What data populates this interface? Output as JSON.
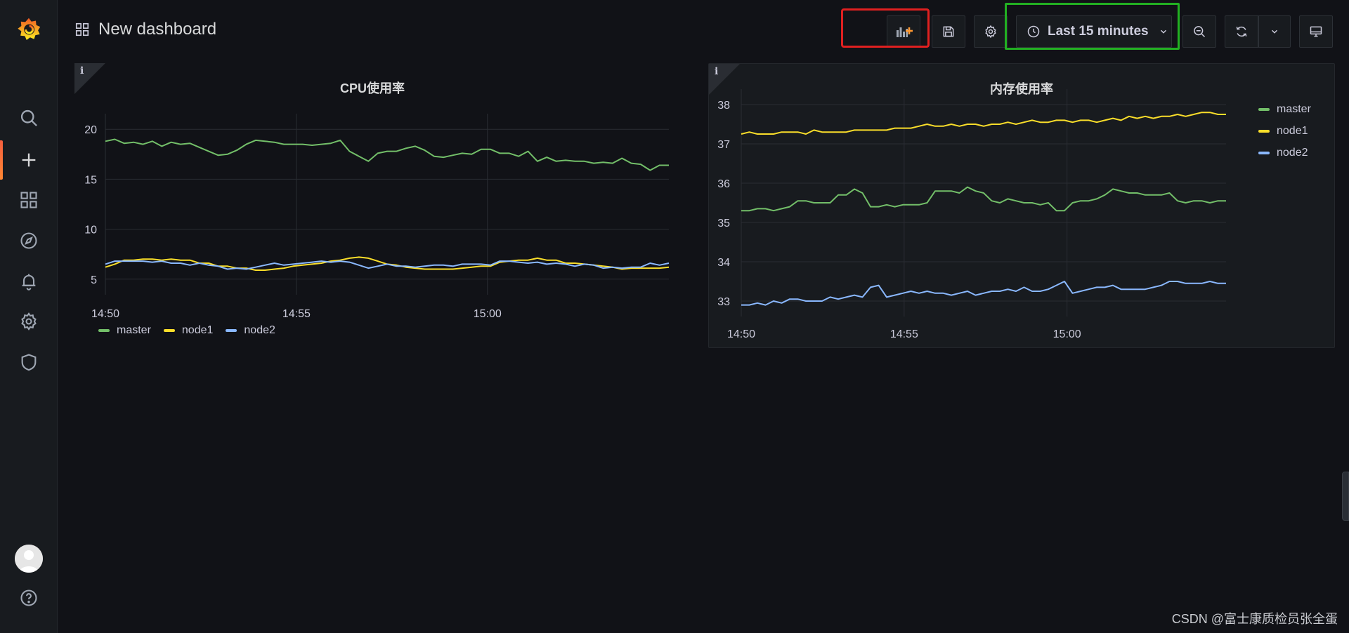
{
  "app": {
    "dashboard_title": "New dashboard"
  },
  "toolbar": {
    "time_range": "Last 15 minutes",
    "icons": [
      "add-panel-icon",
      "save-icon",
      "settings-icon",
      "clock-icon",
      "chevron-down-icon",
      "zoom-out-icon",
      "refresh-icon",
      "chevron-down-icon",
      "tv-icon"
    ]
  },
  "sidebar": {
    "items": [
      "grafana-logo-icon",
      "search-icon",
      "plus-icon",
      "dashboards-icon",
      "explore-icon",
      "alerting-icon",
      "gear-icon",
      "shield-icon",
      "avatar",
      "help-icon"
    ]
  },
  "colors": {
    "master": "#73bf69",
    "node1": "#fade2a",
    "node2": "#8ab8ff",
    "accent": "#ff8833"
  },
  "panels": [
    {
      "title": "CPU使用率",
      "info_label": "i",
      "legend_placement": "bottom",
      "chart_data": {
        "type": "line",
        "x_ticks": [
          "14:50",
          "14:55",
          "15:00"
        ],
        "y_ticks": [
          5,
          10,
          15,
          20
        ],
        "ylim": [
          4,
          21
        ],
        "series": [
          {
            "name": "master",
            "values": [
              18.8,
              19,
              18.6,
              18.7,
              18.5,
              18.8,
              18.3,
              18.7,
              18.5,
              18.6,
              18.2,
              17.8,
              17.4,
              17.5,
              17.9,
              18.5,
              18.9,
              18.8,
              18.7,
              18.5,
              18.5,
              18.5,
              18.4,
              18.5,
              18.6,
              18.9,
              17.8,
              17.3,
              16.8,
              17.6,
              17.8,
              17.8,
              18.1,
              18.3,
              17.9,
              17.3,
              17.2,
              17.4,
              17.6,
              17.5,
              18,
              18,
              17.6,
              17.6,
              17.3,
              17.8,
              16.8,
              17.2,
              16.8,
              16.9,
              16.8,
              16.8,
              16.6,
              16.7,
              16.6,
              17.1,
              16.6,
              16.5,
              15.9,
              16.4,
              16.4
            ]
          },
          {
            "name": "node1",
            "values": [
              6.2,
              6.5,
              6.9,
              6.9,
              7,
              7,
              6.9,
              7,
              6.9,
              6.9,
              6.6,
              6.6,
              6.3,
              6.3,
              6.1,
              6.1,
              5.9,
              5.9,
              6,
              6.1,
              6.3,
              6.4,
              6.5,
              6.6,
              6.8,
              6.9,
              7.1,
              7.2,
              7.1,
              6.8,
              6.5,
              6.4,
              6.2,
              6.1,
              6,
              6,
              6,
              6,
              6.1,
              6.2,
              6.3,
              6.3,
              6.7,
              6.8,
              6.9,
              6.9,
              7.1,
              6.9,
              6.9,
              6.6,
              6.6,
              6.5,
              6.4,
              6.3,
              6.2,
              6,
              6.1,
              6.1,
              6.1,
              6.1,
              6.2
            ]
          },
          {
            "name": "node2",
            "values": [
              6.5,
              6.8,
              6.8,
              6.8,
              6.8,
              6.7,
              6.8,
              6.6,
              6.6,
              6.4,
              6.6,
              6.4,
              6.3,
              6,
              6.1,
              6,
              6.2,
              6.4,
              6.6,
              6.4,
              6.5,
              6.6,
              6.7,
              6.8,
              6.7,
              6.8,
              6.7,
              6.4,
              6.1,
              6.3,
              6.5,
              6.3,
              6.3,
              6.2,
              6.3,
              6.4,
              6.4,
              6.3,
              6.5,
              6.5,
              6.5,
              6.4,
              6.8,
              6.8,
              6.7,
              6.6,
              6.7,
              6.5,
              6.6,
              6.5,
              6.3,
              6.5,
              6.4,
              6.1,
              6.2,
              6.1,
              6.2,
              6.2,
              6.6,
              6.4,
              6.6
            ]
          }
        ]
      }
    },
    {
      "title": "内存使用率",
      "info_label": "i",
      "legend_placement": "right",
      "chart_data": {
        "type": "line",
        "x_ticks": [
          "14:50",
          "14:55",
          "15:00"
        ],
        "y_ticks": [
          33,
          34,
          35,
          36,
          37,
          38
        ],
        "ylim": [
          32.75,
          38.25
        ],
        "series": [
          {
            "name": "master",
            "values": [
              35.3,
              35.3,
              35.35,
              35.35,
              35.3,
              35.35,
              35.4,
              35.55,
              35.55,
              35.5,
              35.5,
              35.5,
              35.7,
              35.7,
              35.85,
              35.75,
              35.4,
              35.4,
              35.45,
              35.4,
              35.45,
              35.45,
              35.45,
              35.5,
              35.8,
              35.8,
              35.8,
              35.75,
              35.9,
              35.8,
              35.75,
              35.55,
              35.5,
              35.6,
              35.55,
              35.5,
              35.5,
              35.45,
              35.5,
              35.3,
              35.3,
              35.5,
              35.55,
              35.55,
              35.6,
              35.7,
              35.85,
              35.8,
              35.75,
              35.75,
              35.7,
              35.7,
              35.7,
              35.75,
              35.55,
              35.5,
              35.55,
              35.55,
              35.5,
              35.55,
              35.55
            ]
          },
          {
            "name": "node1",
            "values": [
              37.25,
              37.3,
              37.25,
              37.25,
              37.25,
              37.3,
              37.3,
              37.3,
              37.25,
              37.35,
              37.3,
              37.3,
              37.3,
              37.3,
              37.35,
              37.35,
              37.35,
              37.35,
              37.35,
              37.4,
              37.4,
              37.4,
              37.45,
              37.5,
              37.45,
              37.45,
              37.5,
              37.45,
              37.5,
              37.5,
              37.45,
              37.5,
              37.5,
              37.55,
              37.5,
              37.55,
              37.6,
              37.55,
              37.55,
              37.6,
              37.6,
              37.55,
              37.6,
              37.6,
              37.55,
              37.6,
              37.65,
              37.6,
              37.7,
              37.65,
              37.7,
              37.65,
              37.7,
              37.7,
              37.75,
              37.7,
              37.75,
              37.8,
              37.8,
              37.75,
              37.75
            ]
          },
          {
            "name": "node2",
            "values": [
              32.9,
              32.9,
              32.95,
              32.9,
              33,
              32.95,
              33.05,
              33.05,
              33,
              33,
              33,
              33.1,
              33.05,
              33.1,
              33.15,
              33.1,
              33.35,
              33.4,
              33.1,
              33.15,
              33.2,
              33.25,
              33.2,
              33.25,
              33.2,
              33.2,
              33.15,
              33.2,
              33.25,
              33.15,
              33.2,
              33.25,
              33.25,
              33.3,
              33.25,
              33.35,
              33.25,
              33.25,
              33.3,
              33.4,
              33.5,
              33.2,
              33.25,
              33.3,
              33.35,
              33.35,
              33.4,
              33.3,
              33.3,
              33.3,
              33.3,
              33.35,
              33.4,
              33.5,
              33.5,
              33.45,
              33.45,
              33.45,
              33.5,
              33.45,
              33.45
            ]
          }
        ]
      }
    }
  ],
  "watermark": "CSDN @富士康质检员张全蛋"
}
